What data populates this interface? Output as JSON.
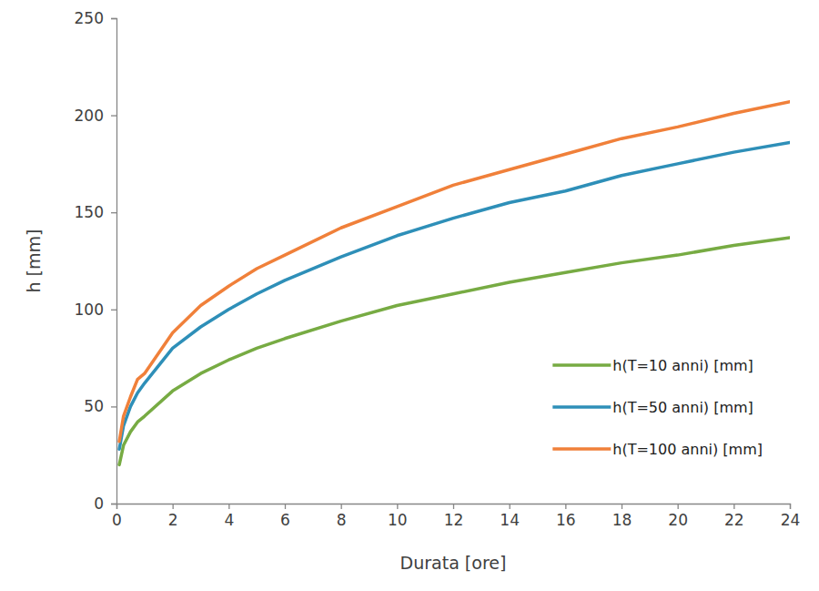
{
  "chart_data": {
    "type": "line",
    "x_label": "Durata [ore]",
    "y_label": "h [mm]",
    "x": [
      0.1,
      0.25,
      0.5,
      0.75,
      1,
      2,
      3,
      4,
      5,
      6,
      8,
      10,
      12,
      14,
      16,
      18,
      20,
      22,
      24
    ],
    "series": [
      {
        "name": "h(T=10 anni) [mm]",
        "color": "#77ab43",
        "values": [
          20,
          30,
          37,
          42,
          45,
          58,
          67,
          74,
          80,
          85,
          94,
          102,
          108,
          114,
          119,
          124,
          128,
          133,
          137
        ]
      },
      {
        "name": "h(T=50 anni) [mm]",
        "color": "#2e8fb8",
        "values": [
          28,
          40,
          50,
          57,
          62,
          80,
          91,
          100,
          108,
          115,
          127,
          138,
          147,
          155,
          161,
          169,
          175,
          181,
          186
        ]
      },
      {
        "name": "h(T=100 anni) [mm]",
        "color": "#f0803a",
        "values": [
          32,
          45,
          55,
          64,
          67,
          88,
          102,
          112,
          121,
          128,
          142,
          153,
          164,
          172,
          180,
          188,
          194,
          201,
          207
        ]
      }
    ],
    "xlim": [
      0,
      24
    ],
    "xticks": [
      0,
      2,
      4,
      6,
      8,
      10,
      12,
      14,
      16,
      18,
      20,
      22,
      24
    ],
    "ylim": [
      0,
      250
    ],
    "yticks": [
      0,
      50,
      100,
      150,
      200,
      250
    ],
    "grid": false,
    "legend": "lower right"
  }
}
